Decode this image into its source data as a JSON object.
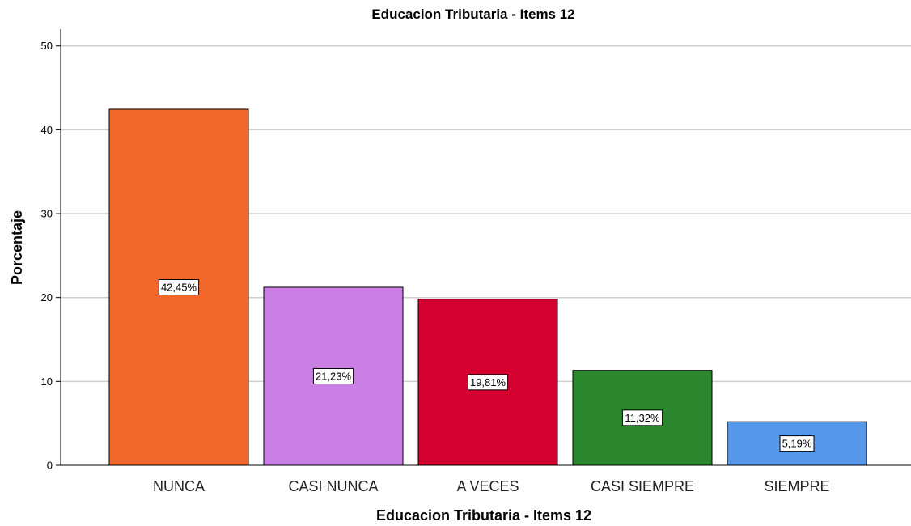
{
  "chart_data": {
    "type": "bar",
    "title": "Educacion Tributaria - Items 12",
    "xlabel": "Educacion Tributaria - Items 12",
    "ylabel": "Porcentaje",
    "categories": [
      "NUNCA",
      "CASI NUNCA",
      "A VECES",
      "CASI SIEMPRE",
      "SIEMPRE"
    ],
    "values": [
      42.45,
      21.23,
      19.81,
      11.32,
      5.19
    ],
    "data_labels": [
      "42,45%",
      "21,23%",
      "19,81%",
      "11,32%",
      "5,19%"
    ],
    "colors": [
      "#f2672a",
      "#c97fe3",
      "#d4002f",
      "#2a872e",
      "#5597e8"
    ],
    "yticks": [
      0,
      10,
      20,
      30,
      40,
      50
    ],
    "ylim": [
      0,
      52
    ],
    "grid": true,
    "legend": "none"
  }
}
